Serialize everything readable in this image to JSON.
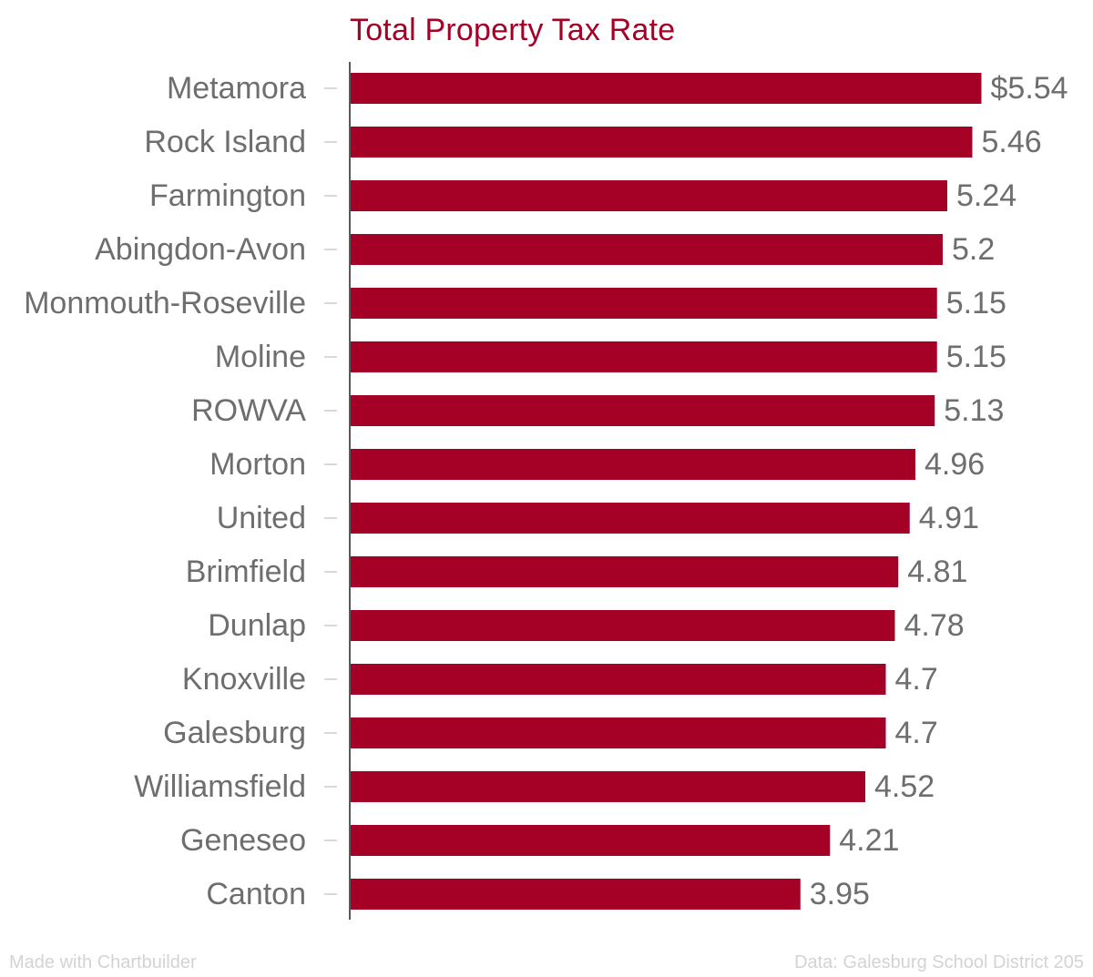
{
  "chart_data": {
    "type": "bar",
    "orientation": "horizontal",
    "title": "Total Property Tax Rate",
    "xlabel": "",
    "ylabel": "",
    "xlim": [
      0,
      5.54
    ],
    "grid": false,
    "legend": "none",
    "categories": [
      "Metamora",
      "Rock Island",
      "Farmington",
      "Abingdon-Avon",
      "Monmouth-Roseville",
      "Moline",
      "ROWVA",
      "Morton",
      "United",
      "Brimfield",
      "Dunlap",
      "Knoxville",
      "Galesburg",
      "Williamsfield",
      "Geneseo",
      "Canton"
    ],
    "values": [
      5.54,
      5.46,
      5.24,
      5.2,
      5.15,
      5.15,
      5.13,
      4.96,
      4.91,
      4.81,
      4.78,
      4.7,
      4.7,
      4.52,
      4.21,
      3.95
    ],
    "value_labels": [
      "$5.54",
      "5.46",
      "5.24",
      "5.2",
      "5.15",
      "5.15",
      "5.13",
      "4.96",
      "4.91",
      "4.81",
      "4.78",
      "4.7",
      "4.7",
      "4.52",
      "4.21",
      "3.95"
    ]
  },
  "colors": {
    "bar": "#a50026",
    "title": "#a50026",
    "category_text": "#6e6e6e",
    "value_text": "#6e6e6e",
    "axis": "#222222",
    "tick": "#cccccc",
    "footer": "#d3d3d3"
  },
  "footer": {
    "credit": "Made with Chartbuilder",
    "source": "Data: Galesburg School District 205"
  }
}
